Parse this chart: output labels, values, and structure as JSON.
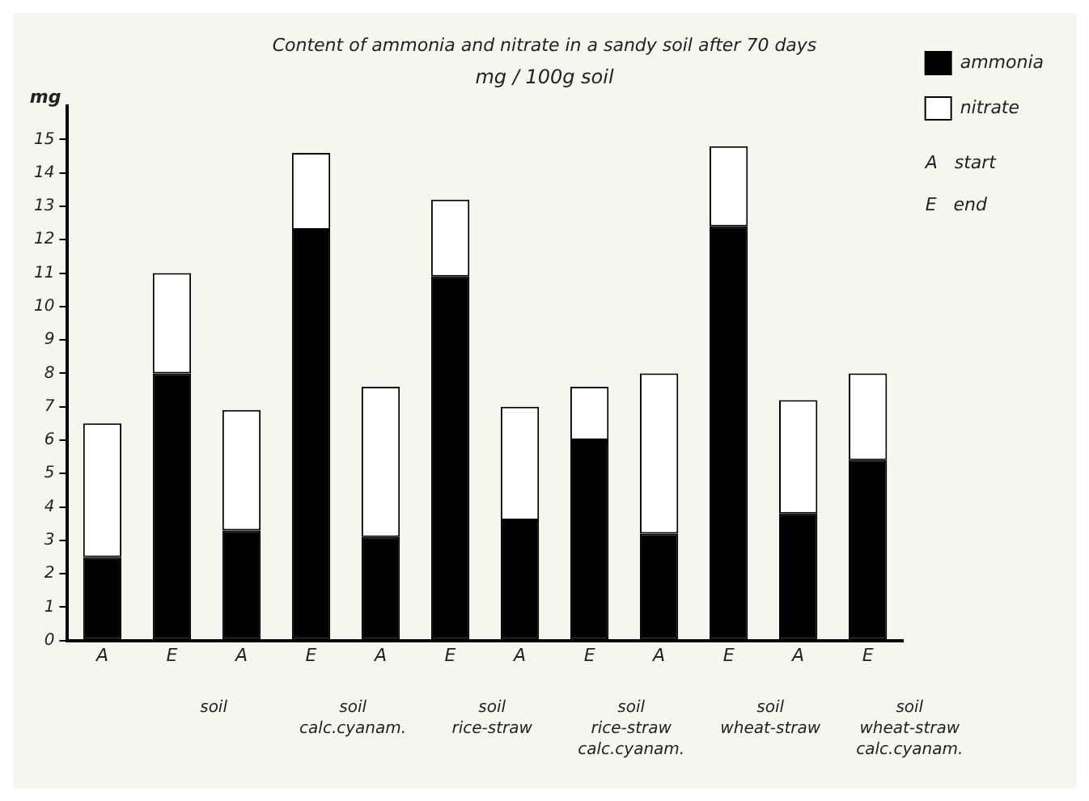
{
  "chart_data": {
    "type": "bar",
    "title": "Content of ammonia and nitrate in a sandy soil after 70 days",
    "subtitle": "mg / 100g soil",
    "ylabel": "mg",
    "categories": [
      "A",
      "E",
      "A",
      "E",
      "A",
      "E",
      "A",
      "E",
      "A",
      "E",
      "A",
      "E"
    ],
    "stacked": true,
    "series": [
      {
        "name": "ammonia",
        "color": "#000000",
        "values": [
          2.5,
          8.0,
          3.3,
          12.3,
          3.1,
          10.9,
          3.6,
          6.0,
          3.2,
          12.4,
          3.8,
          5.4
        ]
      },
      {
        "name": "nitrate",
        "color": "#ffffff",
        "values": [
          4.0,
          3.0,
          3.6,
          2.3,
          4.5,
          2.3,
          3.4,
          1.6,
          4.8,
          2.4,
          3.4,
          2.6
        ]
      }
    ],
    "ylim": [
      0,
      16
    ],
    "yticks": [
      0,
      1,
      2,
      3,
      4,
      5,
      6,
      7,
      8,
      9,
      10,
      11,
      12,
      13,
      14,
      15
    ],
    "legend": "top right",
    "grid": false,
    "annotations": [
      "soil",
      "soil\ncalc.cyanam.",
      "soil\nrice-straw",
      "soil\nrice-straw\ncalc.cyanam.",
      "soil\nwheat-straw",
      "soil\nwheat-straw\ncalc.cyanam.",
      "A   start",
      "E   end"
    ]
  }
}
